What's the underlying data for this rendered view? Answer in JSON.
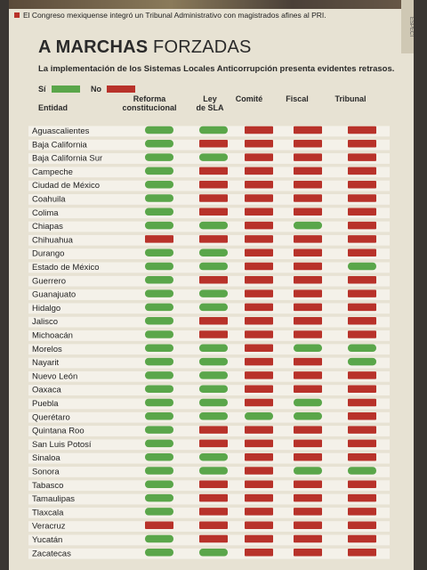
{
  "caption": "El Congreso mexiquense integró un Tribunal Administrativo con magistrados afines al PRI.",
  "side_tab": "ESPECI",
  "title_bold": "A MARCHAS",
  "title_rest": " FORZADAS",
  "subtitle": "La implementación de los Sistemas Locales Anticorrupción presenta evidentes retrasos.",
  "legend": {
    "yes_label": "Sí",
    "no_label": "No"
  },
  "colors": {
    "yes": "#5aa64a",
    "no": "#b8322a",
    "row_band": "#f4f1e9"
  },
  "headers": {
    "entity": "Entidad",
    "reforma_1": "Reforma",
    "reforma_2": "constitucional",
    "ley_1": "Ley",
    "ley_2": "de SLA",
    "comite": "Comité",
    "fiscal": "Fiscal",
    "tribunal": "Tribunal"
  },
  "chart_data": {
    "type": "table",
    "title": "A MARCHAS FORZADAS",
    "subtitle": "La implementación de los Sistemas Locales Anticorrupción presenta evidentes retrasos.",
    "columns": [
      "Reforma constitucional",
      "Ley de SLA",
      "Comité",
      "Fiscal",
      "Tribunal"
    ],
    "values_legend": {
      "1": "Sí",
      "0": "No"
    },
    "rows": [
      {
        "entity": "Aguascalientes",
        "values": [
          1,
          1,
          0,
          0,
          0
        ]
      },
      {
        "entity": "Baja California",
        "values": [
          1,
          0,
          0,
          0,
          0
        ]
      },
      {
        "entity": "Baja California Sur",
        "values": [
          1,
          1,
          0,
          0,
          0
        ]
      },
      {
        "entity": "Campeche",
        "values": [
          1,
          0,
          0,
          0,
          0
        ]
      },
      {
        "entity": "Ciudad de México",
        "values": [
          1,
          0,
          0,
          0,
          0
        ]
      },
      {
        "entity": "Coahuila",
        "values": [
          1,
          0,
          0,
          0,
          0
        ]
      },
      {
        "entity": "Colima",
        "values": [
          1,
          0,
          0,
          0,
          0
        ]
      },
      {
        "entity": "Chiapas",
        "values": [
          1,
          1,
          0,
          1,
          0
        ]
      },
      {
        "entity": "Chihuahua",
        "values": [
          0,
          0,
          0,
          0,
          0
        ]
      },
      {
        "entity": "Durango",
        "values": [
          1,
          1,
          0,
          0,
          0
        ]
      },
      {
        "entity": "Estado de México",
        "values": [
          1,
          1,
          0,
          0,
          1
        ]
      },
      {
        "entity": "Guerrero",
        "values": [
          1,
          0,
          0,
          0,
          0
        ]
      },
      {
        "entity": "Guanajuato",
        "values": [
          1,
          1,
          0,
          0,
          0
        ]
      },
      {
        "entity": "Hidalgo",
        "values": [
          1,
          1,
          0,
          0,
          0
        ]
      },
      {
        "entity": "Jalisco",
        "values": [
          1,
          0,
          0,
          0,
          0
        ]
      },
      {
        "entity": "Michoacán",
        "values": [
          1,
          0,
          0,
          0,
          0
        ]
      },
      {
        "entity": "Morelos",
        "values": [
          1,
          1,
          0,
          1,
          1
        ]
      },
      {
        "entity": "Nayarit",
        "values": [
          1,
          1,
          0,
          0,
          1
        ]
      },
      {
        "entity": "Nuevo León",
        "values": [
          1,
          1,
          0,
          0,
          0
        ]
      },
      {
        "entity": "Oaxaca",
        "values": [
          1,
          1,
          0,
          0,
          0
        ]
      },
      {
        "entity": "Puebla",
        "values": [
          1,
          1,
          0,
          1,
          0
        ]
      },
      {
        "entity": "Querétaro",
        "values": [
          1,
          1,
          1,
          1,
          0
        ]
      },
      {
        "entity": "Quintana Roo",
        "values": [
          1,
          0,
          0,
          0,
          0
        ]
      },
      {
        "entity": "San Luis Potosí",
        "values": [
          1,
          0,
          0,
          0,
          0
        ]
      },
      {
        "entity": "Sinaloa",
        "values": [
          1,
          1,
          0,
          0,
          0
        ]
      },
      {
        "entity": "Sonora",
        "values": [
          1,
          1,
          0,
          1,
          1
        ]
      },
      {
        "entity": "Tabasco",
        "values": [
          1,
          0,
          0,
          0,
          0
        ]
      },
      {
        "entity": "Tamaulipas",
        "values": [
          1,
          0,
          0,
          0,
          0
        ]
      },
      {
        "entity": "Tlaxcala",
        "values": [
          1,
          0,
          0,
          0,
          0
        ]
      },
      {
        "entity": "Veracruz",
        "values": [
          0,
          0,
          0,
          0,
          0
        ]
      },
      {
        "entity": "Yucatán",
        "values": [
          1,
          0,
          0,
          0,
          0
        ]
      },
      {
        "entity": "Zacatecas",
        "values": [
          1,
          1,
          0,
          0,
          0
        ]
      }
    ]
  }
}
